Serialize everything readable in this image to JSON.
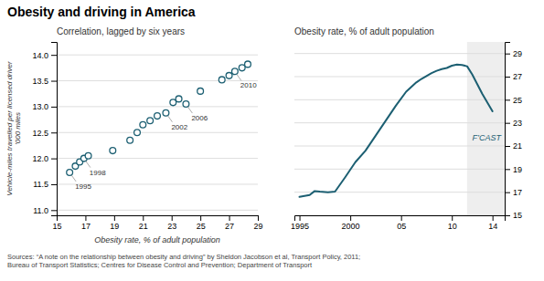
{
  "title": "Obesity and driving in America",
  "source": "Sources: “A note on the relationship between obesity and driving” by Sheldon Jacobson et al, Transport Policy, 2011;\nBureau of Transport Statistics; Centres for Disease Control and Prevention; Department of Transport",
  "chart_data": [
    {
      "type": "scatter",
      "title": "Correlation, lagged by six years",
      "xlabel": "Obesity rate, % of adult population",
      "ylabel": "Vehicle-miles travelled per licensed driver\n’000 miles",
      "x": [
        15.9,
        16.3,
        16.6,
        16.9,
        17.2,
        18.9,
        20.1,
        20.6,
        21.0,
        21.5,
        22.0,
        22.6,
        23.1,
        23.5,
        24.0,
        25.0,
        26.5,
        27.0,
        27.4,
        27.9,
        28.3
      ],
      "values": [
        11.73,
        11.85,
        11.93,
        12.0,
        12.05,
        12.15,
        12.35,
        12.5,
        12.65,
        12.73,
        12.82,
        12.88,
        13.08,
        13.15,
        13.05,
        13.3,
        13.52,
        13.6,
        13.68,
        13.75,
        13.82
      ],
      "color": "#1c5f72",
      "marker": "circle",
      "xlim": [
        15,
        29
      ],
      "ylim": [
        10.9,
        14.25
      ],
      "xticks": [
        15,
        17,
        19,
        21,
        23,
        25,
        27,
        29
      ],
      "yticks": [
        {
          "value": 11.0,
          "label": "11.0"
        },
        11.5,
        {
          "value": 12.0,
          "label": "12.0"
        },
        12.5,
        {
          "value": 13.0,
          "label": "13.0"
        },
        13.5,
        {
          "value": 14.0,
          "label": "14.0"
        }
      ],
      "grid": true,
      "annotations": [
        {
          "text": "1995",
          "x": 15.9,
          "y": 11.73
        },
        {
          "text": "1998",
          "x": 16.9,
          "y": 12.0
        },
        {
          "text": "2002",
          "x": 22.6,
          "y": 12.88
        },
        {
          "text": "2006",
          "x": 24.0,
          "y": 13.05
        },
        {
          "text": "2010",
          "x": 27.4,
          "y": 13.68
        }
      ]
    },
    {
      "type": "line",
      "title": "Obesity rate, % of adult population",
      "x": [
        1995,
        1996,
        1996.5,
        1997,
        1997.8,
        1998.5,
        1999.5,
        2000.5,
        2001.5,
        2002.5,
        2003.5,
        2004.5,
        2005.5,
        2006.5,
        2007,
        2007.5,
        2008,
        2008.5,
        2009,
        2009.5,
        2010,
        2010.5,
        2011,
        2011.5,
        2012,
        2013,
        2014
      ],
      "values": [
        16.6,
        16.75,
        17.1,
        17.05,
        17.0,
        17.05,
        18.3,
        19.6,
        20.6,
        21.9,
        23.2,
        24.5,
        25.7,
        26.5,
        26.8,
        27.05,
        27.3,
        27.5,
        27.65,
        27.75,
        27.95,
        28.05,
        28.0,
        27.9,
        27.2,
        25.5,
        24.0
      ],
      "color": "#1c5f72",
      "xlim": [
        1994.5,
        2015.2
      ],
      "ylim": [
        15,
        30
      ],
      "xticks": [
        1995,
        2000,
        {
          "value": 2005,
          "label": "05"
        },
        {
          "value": 2010,
          "label": "10"
        },
        {
          "value": 2014,
          "label": "14"
        }
      ],
      "yticks": [
        15,
        17,
        19,
        21,
        23,
        25,
        27,
        29
      ],
      "grid": true,
      "forecast_span": [
        2011.5,
        2015.5
      ],
      "annotations": [
        {
          "text": "F’CAST",
          "x": 2012.0,
          "y": 21.5
        }
      ]
    }
  ]
}
